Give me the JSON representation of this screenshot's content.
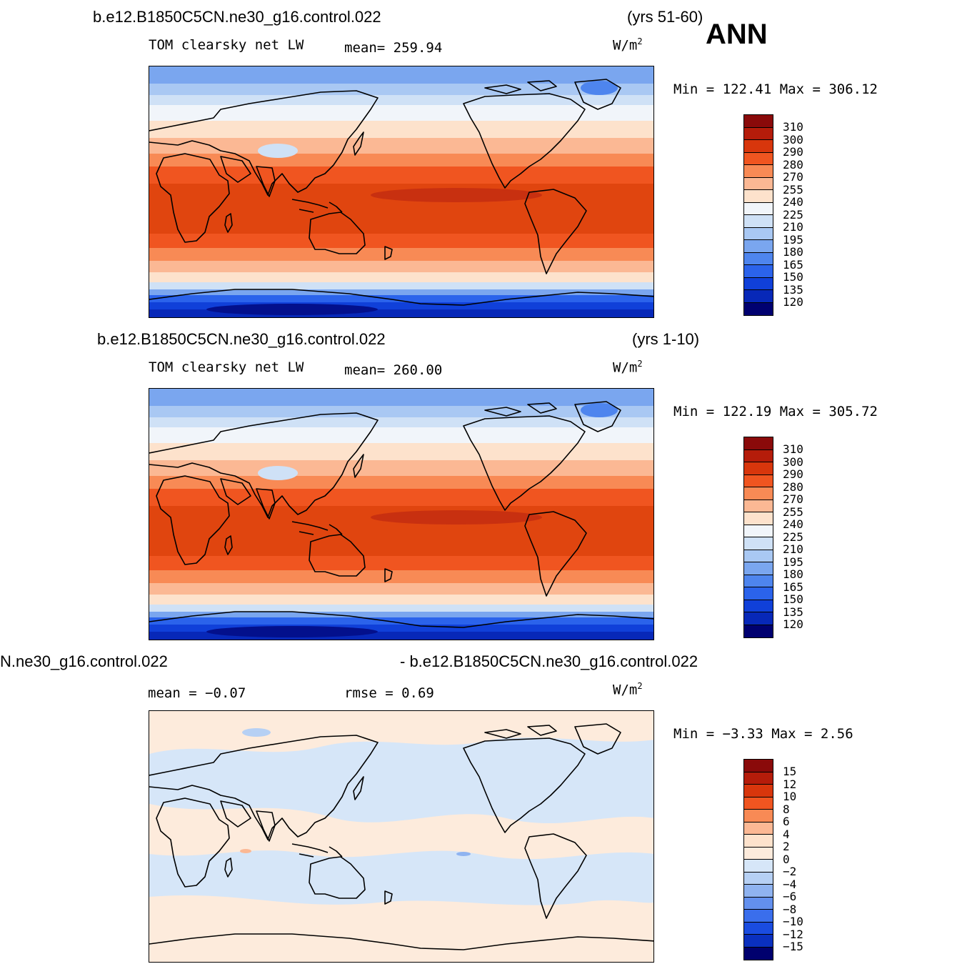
{
  "season": "ANN",
  "panels": [
    {
      "case": "b.e12.B1850C5CN.ne30_g16.control.022",
      "years": "(yrs 51-60)",
      "variable": "TOM clearsky net LW",
      "stat1": "mean= 259.94",
      "stat2": "",
      "units": "W/m",
      "units_sup": "2",
      "minmax": "Min = 122.41 Max = 306.12",
      "colorbar": {
        "colors": [
          "#8a0a0a",
          "#b51c0a",
          "#d8360c",
          "#f05520",
          "#f88a55",
          "#fbb894",
          "#fde2cc",
          "#f1f5fa",
          "#cfe1f6",
          "#a9c8f3",
          "#7aa6ef",
          "#4e85ee",
          "#2b63eb",
          "#1040d9",
          "#0728b8",
          "#03108c",
          "#000070"
        ],
        "labels": [
          "310",
          "300",
          "290",
          "280",
          "270",
          "255",
          "240",
          "225",
          "210",
          "195",
          "180",
          "165",
          "150",
          "135",
          "120"
        ]
      }
    },
    {
      "case": "b.e12.B1850C5CN.ne30_g16.control.022",
      "years": "(yrs 1-10)",
      "variable": "TOM clearsky net LW",
      "stat1": "mean= 260.00",
      "stat2": "",
      "units": "W/m",
      "units_sup": "2",
      "minmax": "Min = 122.19 Max = 305.72",
      "colorbar": {
        "colors": [
          "#8a0a0a",
          "#b51c0a",
          "#d8360c",
          "#f05520",
          "#f88a55",
          "#fbb894",
          "#fde2cc",
          "#f1f5fa",
          "#cfe1f6",
          "#a9c8f3",
          "#7aa6ef",
          "#4e85ee",
          "#2b63eb",
          "#1040d9",
          "#0728b8",
          "#03108c",
          "#000070"
        ],
        "labels": [
          "310",
          "300",
          "290",
          "280",
          "270",
          "255",
          "240",
          "225",
          "210",
          "195",
          "180",
          "165",
          "150",
          "135",
          "120"
        ]
      }
    },
    {
      "case": "N.ne30_g16.control.022",
      "years": "- b.e12.B1850C5CN.ne30_g16.control.022",
      "variable": "",
      "stat1": "mean =   −0.07",
      "stat2": "rmse =    0.69",
      "units": "W/m",
      "units_sup": "2",
      "minmax": "Min =  −3.33 Max =    2.56",
      "colorbar": {
        "colors": [
          "#8a0a0a",
          "#b51c0a",
          "#d8360c",
          "#f05520",
          "#f88a55",
          "#fbb894",
          "#fde2cc",
          "#fdebdc",
          "#d6e6f8",
          "#b6d0f4",
          "#8fb3f0",
          "#6390ee",
          "#3a6eec",
          "#1a4ce0",
          "#0a30bf",
          "#03158f",
          "#00006e"
        ],
        "labels": [
          "15",
          "12",
          "10",
          "8",
          "6",
          "4",
          "2",
          "0",
          "−2",
          "−4",
          "−6",
          "−8",
          "−10",
          "−12",
          "−15"
        ]
      }
    }
  ]
}
